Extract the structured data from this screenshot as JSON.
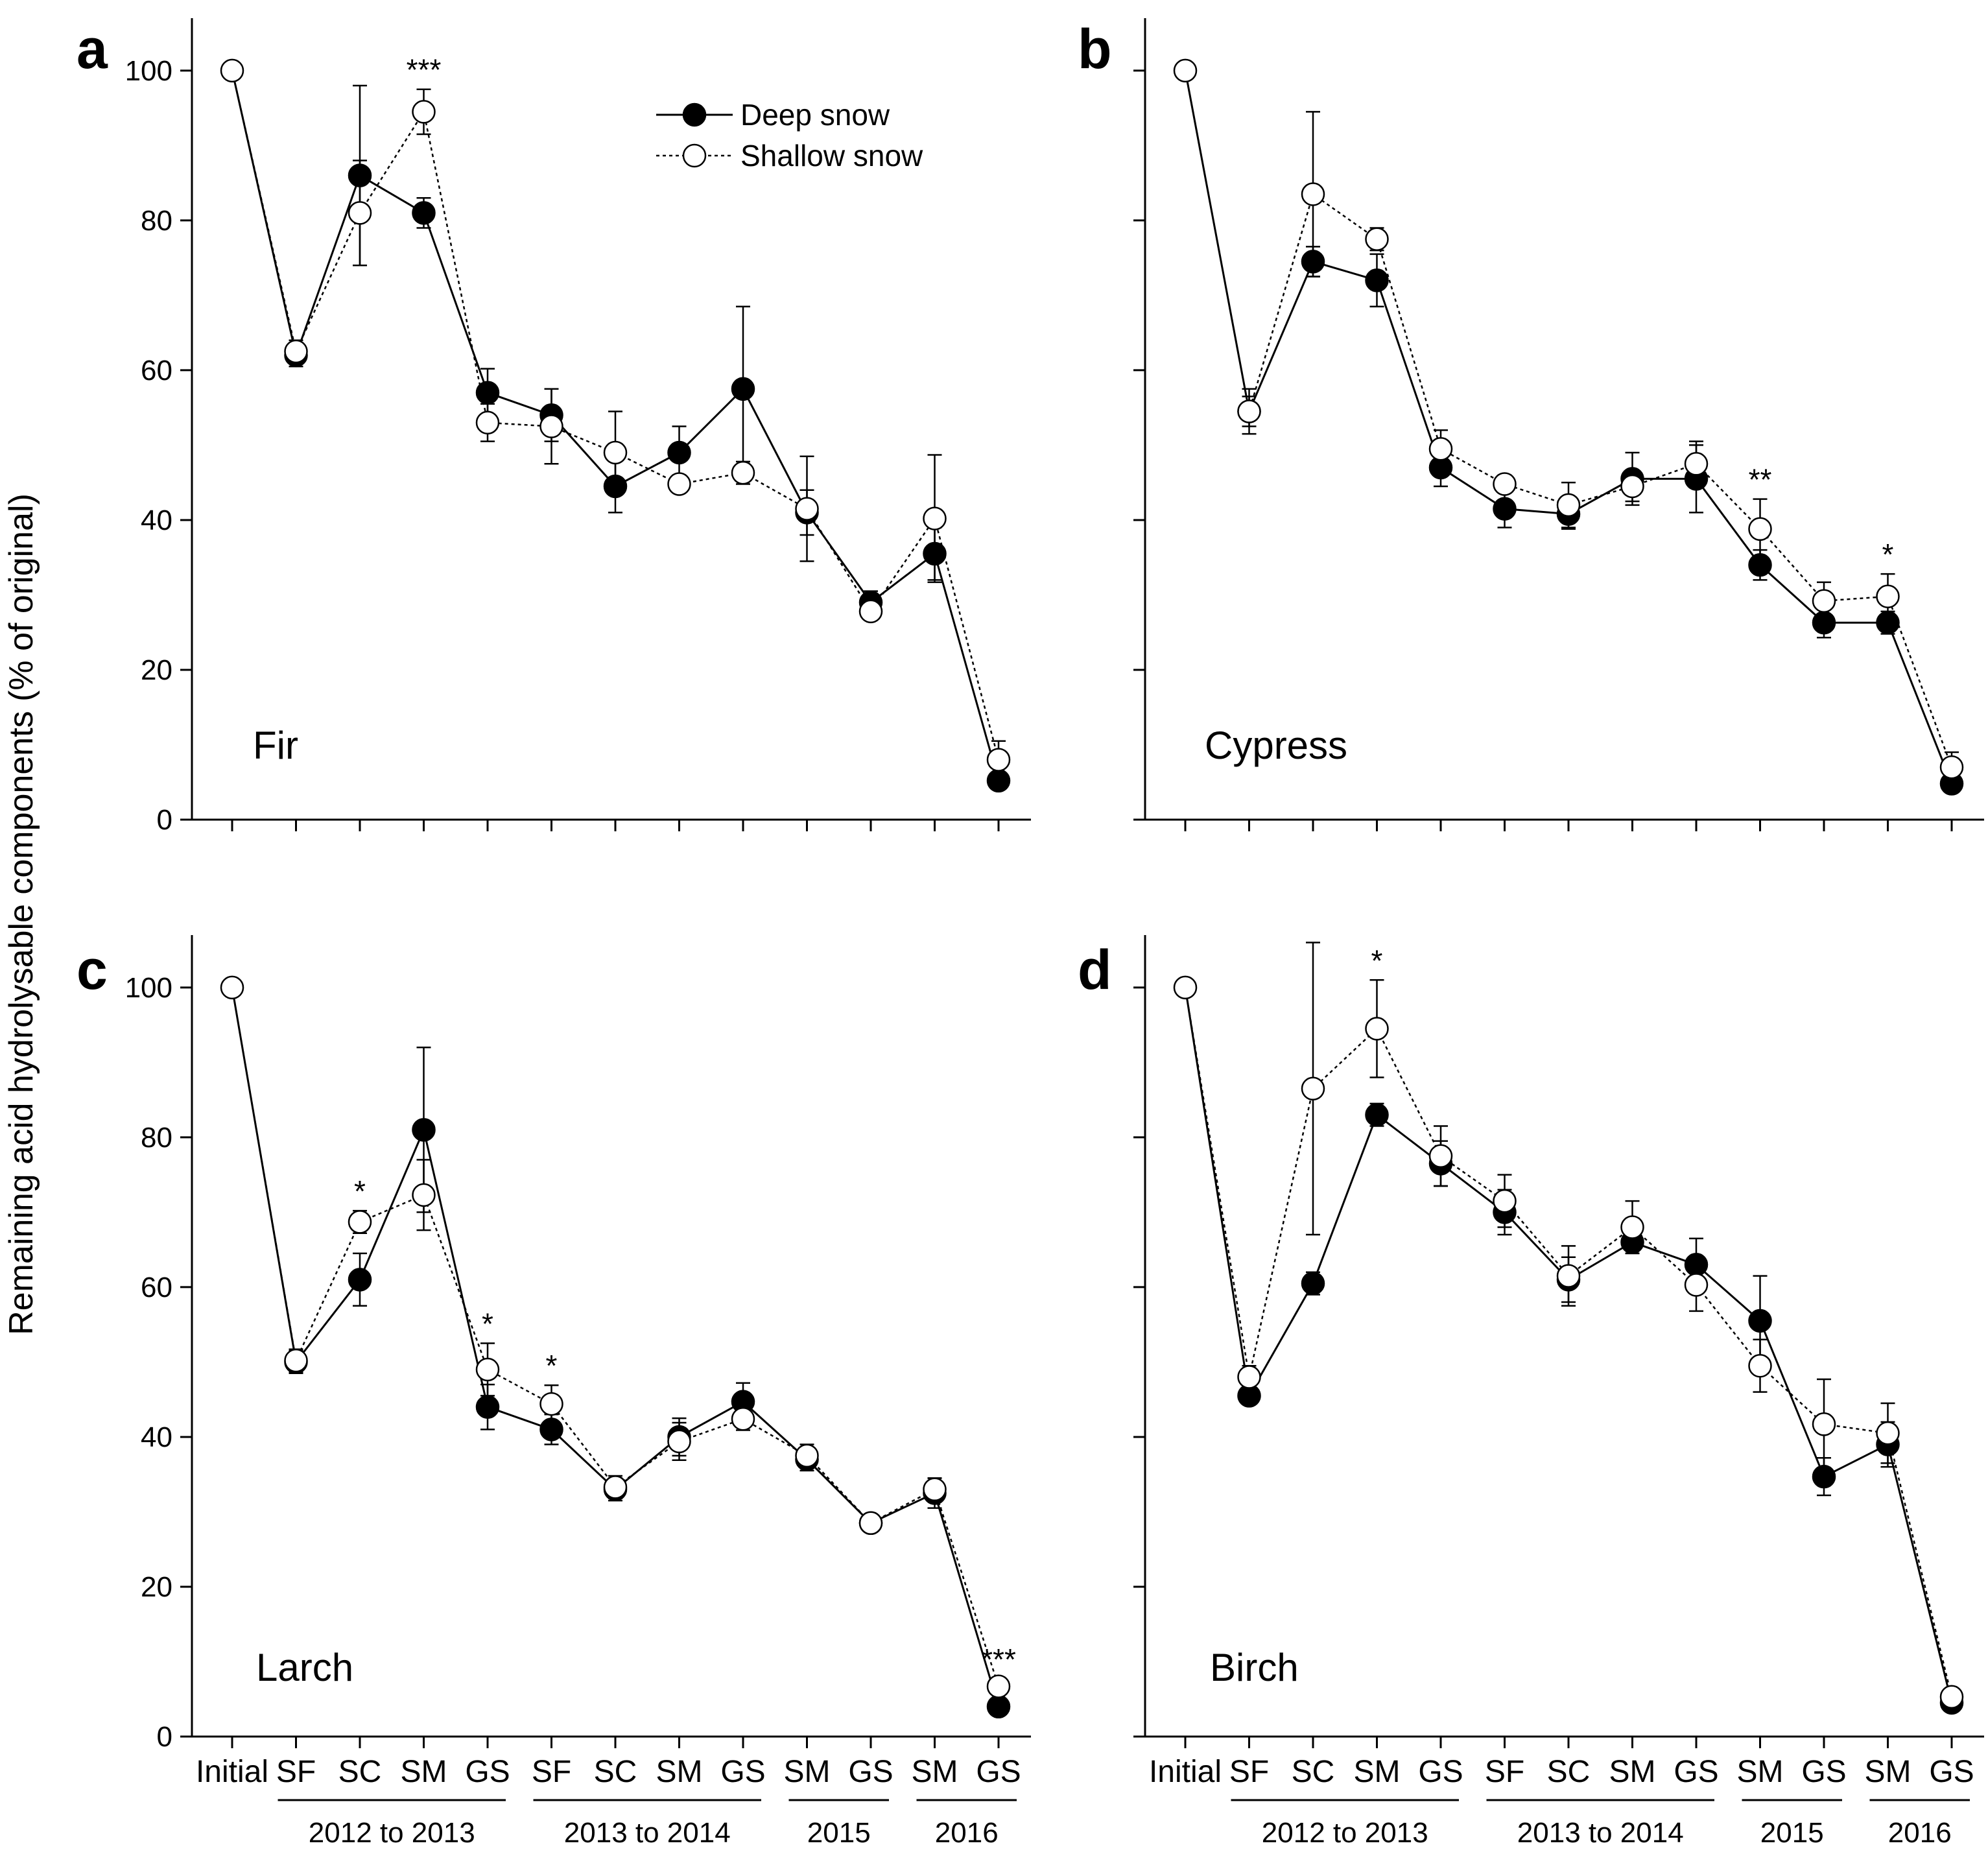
{
  "chart_data": {
    "type": "line",
    "ylabel": "Remaining acid hydrolysable components (% of original)",
    "ylim": [
      0,
      107
    ],
    "yticks": [
      0,
      20,
      40,
      60,
      80,
      100
    ],
    "categories": [
      "Initial",
      "SF",
      "SC",
      "SM",
      "GS",
      "SF",
      "SC",
      "SM",
      "GS",
      "SM",
      "GS",
      "SM",
      "GS"
    ],
    "period_groups": [
      {
        "label": "2012 to 2013",
        "from": 1,
        "to": 4
      },
      {
        "label": "2013 to 2014",
        "from": 5,
        "to": 8
      },
      {
        "label": "2015",
        "from": 9,
        "to": 10
      },
      {
        "label": "2016",
        "from": 11,
        "to": 12
      }
    ],
    "legend": {
      "position": "top-right of panel a",
      "entries": [
        {
          "name": "Deep snow",
          "marker": "filled-circle",
          "line": "solid"
        },
        {
          "name": "Shallow snow",
          "marker": "open-circle",
          "line": "dotted"
        }
      ]
    },
    "panels": [
      {
        "letter": "a",
        "species": "Fir",
        "series": [
          {
            "name": "Deep snow",
            "values": [
              null,
              62,
              86,
              81,
              57,
              54,
              44.5,
              49,
              57.5,
              41,
              29,
              35.5,
              5.2
            ],
            "errors": [
              null,
              1.5,
              12,
              2,
              3.2,
              3.5,
              3.5,
              3.5,
              11,
              3,
              1.5,
              3.5,
              1
            ]
          },
          {
            "name": "Shallow snow",
            "values": [
              100,
              62.5,
              81,
              94.5,
              53,
              52.5,
              49,
              44.8,
              46.3,
              41.5,
              27.8,
              40.2,
              8
            ],
            "errors": [
              null,
              1.5,
              7,
              3,
              2.5,
              5,
              5.5,
              1,
              1.5,
              7,
              1,
              8.5,
              2.5
            ]
          }
        ],
        "significance": [
          {
            "index": 3,
            "label": "***"
          }
        ]
      },
      {
        "letter": "b",
        "species": "Cypress",
        "series": [
          {
            "name": "Deep snow",
            "values": [
              null,
              54.5,
              74.5,
              72,
              47,
              41.5,
              40.8,
              45.5,
              45.5,
              34,
              26.3,
              26.3,
              4.8
            ],
            "errors": [
              null,
              3,
              2,
              3.5,
              2.5,
              2.5,
              2,
              3.5,
              4.5,
              2,
              2,
              1.5,
              1
            ]
          },
          {
            "name": "Shallow snow",
            "values": [
              100,
              54.5,
              83.5,
              77.5,
              49.5,
              44.8,
              42,
              44.5,
              47.5,
              38.8,
              29.2,
              29.8,
              7
            ],
            "errors": [
              null,
              2,
              11,
              1.5,
              2.5,
              1,
              3,
              2,
              3,
              4,
              2.5,
              3,
              2
            ]
          }
        ],
        "significance": [
          {
            "index": 9,
            "label": "**"
          },
          {
            "index": 11,
            "label": "*"
          }
        ]
      },
      {
        "letter": "c",
        "species": "Larch",
        "series": [
          {
            "name": "Deep snow",
            "values": [
              null,
              50,
              61,
              81,
              44,
              41,
              33,
              40,
              44.7,
              37,
              28.5,
              32.5,
              4
            ],
            "errors": [
              null,
              1.5,
              3.5,
              11,
              3,
              2,
              1.5,
              2.5,
              2.5,
              1.5,
              1,
              2,
              0.5
            ]
          },
          {
            "name": "Shallow snow",
            "values": [
              100,
              50.2,
              68.7,
              72.3,
              49,
              44.4,
              33.3,
              39.4,
              42.4,
              37.5,
              28.5,
              33,
              6.7
            ],
            "errors": [
              null,
              1.5,
              1.5,
              4.7,
              3.5,
              2.5,
              1.5,
              2.5,
              1.5,
              1.5,
              1,
              1.5,
              1
            ]
          }
        ],
        "significance": [
          {
            "index": 2,
            "label": "*"
          },
          {
            "index": 4,
            "label": "*"
          },
          {
            "index": 5,
            "label": "*"
          },
          {
            "index": 12,
            "label": "***"
          }
        ]
      },
      {
        "letter": "d",
        "species": "Birch",
        "series": [
          {
            "name": "Deep snow",
            "values": [
              null,
              45.5,
              60.5,
              83,
              76.5,
              70,
              61,
              66,
              63,
              55.5,
              34.7,
              39,
              4.5
            ],
            "errors": [
              null,
              1,
              1.5,
              1.5,
              3,
              3,
              3,
              1.5,
              3.5,
              6,
              2.5,
              3,
              0.5
            ]
          },
          {
            "name": "Shallow snow",
            "values": [
              100,
              48,
              86.5,
              94.5,
              77.5,
              71.5,
              61.5,
              68,
              60.3,
              49.5,
              41.7,
              40.5,
              5.3
            ],
            "errors": [
              null,
              1.5,
              19.5,
              6.5,
              4,
              3.5,
              4,
              3.5,
              3.5,
              3.5,
              6,
              4,
              1
            ]
          }
        ],
        "significance": [
          {
            "index": 3,
            "label": "*"
          }
        ]
      }
    ]
  }
}
